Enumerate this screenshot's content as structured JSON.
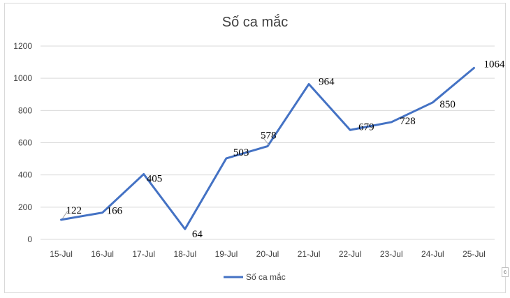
{
  "chart_data": {
    "type": "line",
    "title": "Số ca mắc",
    "xlabel": "",
    "ylabel": "",
    "categories": [
      "15-Jul",
      "16-Jul",
      "17-Jul",
      "18-Jul",
      "19-Jul",
      "20-Jul",
      "21-Jul",
      "22-Jul",
      "23-Jul",
      "24-Jul",
      "25-Jul"
    ],
    "series": [
      {
        "name": "Số ca mắc",
        "values": [
          122,
          166,
          405,
          64,
          503,
          578,
          964,
          679,
          728,
          850,
          1064
        ],
        "color": "#4472c4"
      }
    ],
    "ylim": [
      0,
      1200
    ],
    "yticks": [
      0,
      200,
      400,
      600,
      800,
      1000,
      1200
    ],
    "grid": true,
    "legend_position": "bottom",
    "data_labels": true
  },
  "colors": {
    "series": "#4472c4",
    "grid": "#d9d9d9",
    "text": "#404040",
    "frame": "#d9d9d9"
  }
}
